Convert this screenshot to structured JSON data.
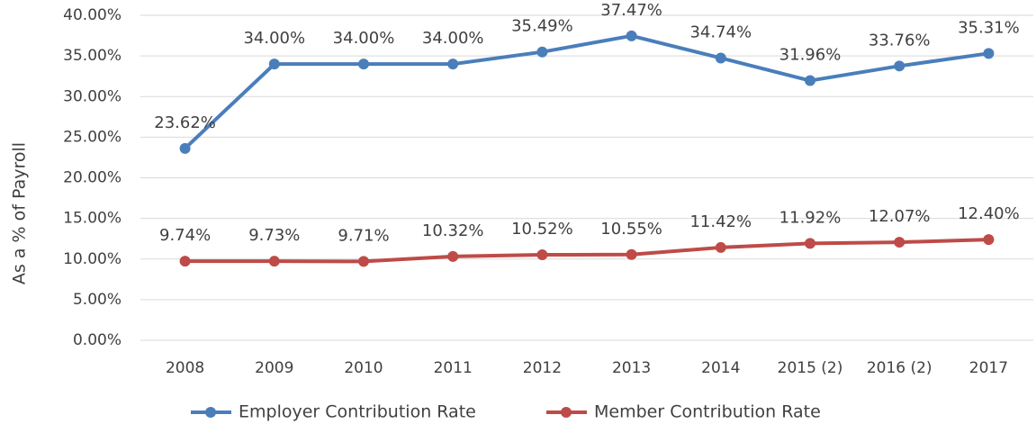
{
  "chart_data": {
    "type": "line",
    "y_label": "As a % of Payroll",
    "categories": [
      "2008",
      "2009",
      "2010",
      "2011",
      "2012",
      "2013",
      "2014",
      "2015  (2)",
      "2016 (2)",
      "2017"
    ],
    "series": [
      {
        "name": "Employer Contribution Rate",
        "color": "#4a7ebb",
        "values": [
          23.62,
          34.0,
          34.0,
          34.0,
          35.49,
          37.47,
          34.74,
          31.96,
          33.76,
          35.31
        ],
        "value_labels": [
          "23.62%",
          "34.00%",
          "34.00%",
          "34.00%",
          "35.49%",
          "37.47%",
          "34.74%",
          "31.96%",
          "33.76%",
          "35.31%"
        ]
      },
      {
        "name": "Member Contribution Rate",
        "color": "#be4b48",
        "values": [
          9.74,
          9.73,
          9.71,
          10.32,
          10.52,
          10.55,
          11.42,
          11.92,
          12.07,
          12.4
        ],
        "value_labels": [
          "9.74%",
          "9.73%",
          "9.71%",
          "10.32%",
          "10.52%",
          "10.55%",
          "11.42%",
          "11.92%",
          "12.07%",
          "12.40%"
        ]
      }
    ],
    "ylim": [
      0,
      40
    ],
    "yticks": [
      {
        "value": 0,
        "label": "0.00%"
      },
      {
        "value": 5,
        "label": "5.00%"
      },
      {
        "value": 10,
        "label": "10.00%"
      },
      {
        "value": 15,
        "label": "15.00%"
      },
      {
        "value": 20,
        "label": "20.00%"
      },
      {
        "value": 25,
        "label": "25.00%"
      },
      {
        "value": 30,
        "label": "30.00%"
      },
      {
        "value": 35,
        "label": "35.00%"
      },
      {
        "value": 40,
        "label": "40.00%"
      }
    ],
    "grid": true,
    "legend": "bottom"
  }
}
